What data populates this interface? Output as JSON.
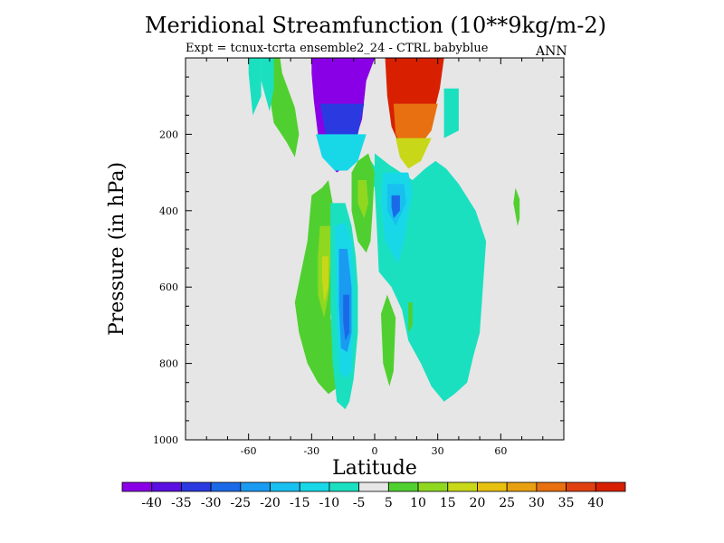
{
  "chart_data": {
    "type": "heatmap",
    "title": "Meridional Streamfunction (10**9kg/m-2)",
    "subtitle": "Expt = tcnux-tcrta  ensemble2_24 - CTRL babyblue",
    "season_label": "ANN",
    "xlabel": "Latitude",
    "ylabel": "Pressure (in hPa)",
    "xlim": [
      -90,
      90
    ],
    "ylim": [
      1000,
      0
    ],
    "x_ticks": [
      -60,
      -30,
      0,
      30,
      60
    ],
    "y_ticks": [
      200,
      400,
      600,
      800,
      1000
    ],
    "background_color": "#e6e6e6",
    "colorbar": {
      "levels": [
        -40,
        -35,
        -30,
        -25,
        -20,
        -15,
        -10,
        -5,
        5,
        10,
        15,
        20,
        25,
        30,
        35,
        40
      ],
      "colors": [
        "#8a00e6",
        "#5a10e0",
        "#2a3ae0",
        "#1a6ae8",
        "#1a9af0",
        "#18c0f0",
        "#18d8e8",
        "#1ae0c0",
        "#e6e6e6",
        "#50d030",
        "#90d820",
        "#c8d818",
        "#e8c010",
        "#e8a010",
        "#e87010",
        "#e04010",
        "#d82000"
      ]
    },
    "regions": [
      {
        "bin": 9,
        "points": [
          [
            -52,
            1
          ],
          [
            -45,
            1
          ],
          [
            -44,
            40
          ],
          [
            -38,
            130
          ],
          [
            -36,
            200
          ],
          [
            -38,
            260
          ],
          [
            -42,
            220
          ],
          [
            -48,
            170
          ],
          [
            -50,
            100
          ]
        ]
      },
      {
        "bin": 7,
        "points": [
          [
            -54,
            1
          ],
          [
            -48,
            1
          ],
          [
            -48,
            80
          ],
          [
            -50,
            140
          ],
          [
            -54,
            60
          ]
        ]
      },
      {
        "bin": 7,
        "points": [
          [
            -30,
            1
          ],
          [
            -26,
            1
          ],
          [
            -27,
            30
          ],
          [
            -29,
            90
          ],
          [
            -29,
            30
          ]
        ]
      },
      {
        "bin": 7,
        "points": [
          [
            -60,
            1
          ],
          [
            -54,
            1
          ],
          [
            -54,
            100
          ],
          [
            -58,
            150
          ],
          [
            -60,
            40
          ]
        ]
      },
      {
        "bin": 0,
        "points": [
          [
            -30,
            1
          ],
          [
            0,
            1
          ],
          [
            -4,
            60
          ],
          [
            -6,
            160
          ],
          [
            -10,
            230
          ],
          [
            -13,
            280
          ],
          [
            -18,
            300
          ],
          [
            -23,
            270
          ],
          [
            -27,
            200
          ],
          [
            -29,
            110
          ],
          [
            -30,
            40
          ]
        ]
      },
      {
        "bin": 2,
        "points": [
          [
            -26,
            120
          ],
          [
            -5,
            120
          ],
          [
            -8,
            200
          ],
          [
            -12,
            260
          ],
          [
            -18,
            280
          ],
          [
            -22,
            240
          ],
          [
            -24,
            180
          ]
        ]
      },
      {
        "bin": 6,
        "points": [
          [
            -28,
            200
          ],
          [
            -4,
            200
          ],
          [
            -8,
            270
          ],
          [
            -13,
            295
          ],
          [
            -19,
            295
          ],
          [
            -25,
            260
          ]
        ]
      },
      {
        "bin": 16,
        "points": [
          [
            5,
            1
          ],
          [
            33,
            1
          ],
          [
            31,
            80
          ],
          [
            27,
            170
          ],
          [
            22,
            230
          ],
          [
            17,
            250
          ],
          [
            12,
            230
          ],
          [
            8,
            180
          ],
          [
            6,
            100
          ]
        ]
      },
      {
        "bin": 14,
        "points": [
          [
            9,
            120
          ],
          [
            30,
            120
          ],
          [
            27,
            190
          ],
          [
            20,
            240
          ],
          [
            14,
            240
          ],
          [
            10,
            200
          ]
        ]
      },
      {
        "bin": 11,
        "points": [
          [
            10,
            210
          ],
          [
            27,
            210
          ],
          [
            22,
            270
          ],
          [
            16,
            290
          ],
          [
            12,
            260
          ]
        ]
      },
      {
        "bin": 7,
        "points": [
          [
            -8,
            270
          ],
          [
            -3,
            260
          ],
          [
            2,
            300
          ],
          [
            5,
            330
          ],
          [
            -2,
            340
          ],
          [
            -6,
            320
          ]
        ]
      },
      {
        "bin": 7,
        "points": [
          [
            0,
            250
          ],
          [
            7,
            280
          ],
          [
            18,
            320
          ],
          [
            24,
            290
          ],
          [
            29,
            270
          ],
          [
            34,
            290
          ],
          [
            40,
            330
          ],
          [
            48,
            400
          ],
          [
            53,
            480
          ],
          [
            52,
            560
          ],
          [
            50,
            720
          ],
          [
            47,
            780
          ],
          [
            44,
            850
          ],
          [
            38,
            880
          ],
          [
            33,
            900
          ],
          [
            27,
            860
          ],
          [
            22,
            800
          ],
          [
            16,
            740
          ],
          [
            13,
            660
          ],
          [
            8,
            600
          ],
          [
            2,
            560
          ],
          [
            1,
            440
          ],
          [
            0,
            340
          ]
        ]
      },
      {
        "bin": 7,
        "points": [
          [
            33,
            80
          ],
          [
            40,
            80
          ],
          [
            40,
            190
          ],
          [
            33,
            210
          ]
        ]
      },
      {
        "bin": 6,
        "points": [
          [
            4,
            300
          ],
          [
            16,
            300
          ],
          [
            18,
            350
          ],
          [
            14,
            480
          ],
          [
            11,
            540
          ],
          [
            5,
            480
          ],
          [
            3,
            380
          ]
        ]
      },
      {
        "bin": 5,
        "points": [
          [
            6,
            330
          ],
          [
            14,
            330
          ],
          [
            15,
            380
          ],
          [
            10,
            440
          ],
          [
            6,
            400
          ]
        ]
      },
      {
        "bin": 3,
        "points": [
          [
            8,
            360
          ],
          [
            12,
            360
          ],
          [
            12,
            400
          ],
          [
            9,
            420
          ],
          [
            8,
            390
          ]
        ]
      },
      {
        "bin": 9,
        "points": [
          [
            -30,
            360
          ],
          [
            -25,
            340
          ],
          [
            -22,
            320
          ],
          [
            -20,
            380
          ],
          [
            -21,
            460
          ],
          [
            -20,
            560
          ],
          [
            -21,
            680
          ],
          [
            -18,
            760
          ],
          [
            -15,
            820
          ],
          [
            -17,
            860
          ],
          [
            -22,
            880
          ],
          [
            -27,
            850
          ],
          [
            -32,
            800
          ],
          [
            -36,
            720
          ],
          [
            -38,
            640
          ],
          [
            -35,
            560
          ],
          [
            -32,
            480
          ]
        ]
      },
      {
        "bin": 10,
        "points": [
          [
            -26,
            440
          ],
          [
            -21,
            440
          ],
          [
            -21,
            540
          ],
          [
            -22,
            620
          ],
          [
            -24,
            680
          ],
          [
            -27,
            620
          ],
          [
            -27,
            520
          ]
        ]
      },
      {
        "bin": 11,
        "points": [
          [
            -25,
            520
          ],
          [
            -22,
            520
          ],
          [
            -22,
            600
          ],
          [
            -24,
            640
          ],
          [
            -25,
            580
          ]
        ]
      },
      {
        "bin": 7,
        "points": [
          [
            -21,
            380
          ],
          [
            -14,
            380
          ],
          [
            -11,
            440
          ],
          [
            -9,
            520
          ],
          [
            -8,
            600
          ],
          [
            -8,
            720
          ],
          [
            -10,
            840
          ],
          [
            -12,
            900
          ],
          [
            -14,
            920
          ],
          [
            -18,
            900
          ],
          [
            -20,
            800
          ],
          [
            -21,
            650
          ]
        ]
      },
      {
        "bin": 6,
        "points": [
          [
            -19,
            440
          ],
          [
            -14,
            430
          ],
          [
            -11,
            480
          ],
          [
            -10,
            560
          ],
          [
            -10,
            700
          ],
          [
            -11,
            820
          ],
          [
            -14,
            840
          ],
          [
            -17,
            820
          ],
          [
            -18,
            700
          ]
        ]
      },
      {
        "bin": 4,
        "points": [
          [
            -17,
            500
          ],
          [
            -13,
            500
          ],
          [
            -11,
            600
          ],
          [
            -11,
            720
          ],
          [
            -13,
            770
          ],
          [
            -16,
            760
          ],
          [
            -17,
            650
          ]
        ]
      },
      {
        "bin": 3,
        "points": [
          [
            -15,
            620
          ],
          [
            -12,
            620
          ],
          [
            -12,
            720
          ],
          [
            -14,
            740
          ],
          [
            -15,
            690
          ]
        ]
      },
      {
        "bin": 9,
        "points": [
          [
            -11,
            300
          ],
          [
            -8,
            270
          ],
          [
            -3,
            250
          ],
          [
            0,
            300
          ],
          [
            -1,
            400
          ],
          [
            -2,
            480
          ],
          [
            -4,
            510
          ],
          [
            -8,
            480
          ],
          [
            -11,
            400
          ]
        ]
      },
      {
        "bin": 10,
        "points": [
          [
            -8,
            320
          ],
          [
            -4,
            320
          ],
          [
            -3,
            380
          ],
          [
            -5,
            420
          ],
          [
            -8,
            380
          ]
        ]
      },
      {
        "bin": 9,
        "points": [
          [
            3,
            670
          ],
          [
            6,
            620
          ],
          [
            10,
            680
          ],
          [
            9,
            820
          ],
          [
            7,
            860
          ],
          [
            4,
            800
          ]
        ]
      },
      {
        "bin": 9,
        "points": [
          [
            16,
            640
          ],
          [
            18,
            640
          ],
          [
            18,
            700
          ],
          [
            16,
            720
          ]
        ]
      },
      {
        "bin": 9,
        "points": [
          [
            67,
            340
          ],
          [
            69,
            370
          ],
          [
            69,
            420
          ],
          [
            68,
            440
          ],
          [
            66,
            380
          ]
        ]
      }
    ]
  }
}
